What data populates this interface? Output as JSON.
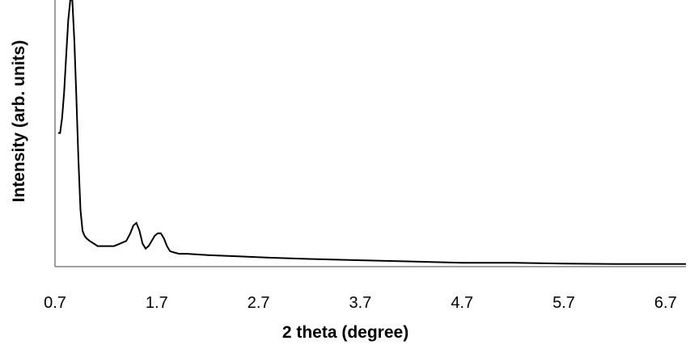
{
  "chart_data": {
    "type": "line",
    "xlabel": "2 theta (degree)",
    "ylabel": "Intensity (arb. units)",
    "xlim": [
      0.7,
      6.9
    ],
    "ylim": [
      0,
      100
    ],
    "x_ticks": [
      "0.7",
      "1.7",
      "2.7",
      "3.7",
      "4.7",
      "5.7",
      "6.7"
    ],
    "y_ticks_shown": false,
    "grid": false,
    "legend": "none",
    "series": [
      {
        "color": "#000000",
        "x": [
          0.73,
          0.75,
          0.77,
          0.79,
          0.81,
          0.83,
          0.85,
          0.87,
          0.89,
          0.91,
          0.93,
          0.95,
          0.97,
          0.99,
          1.01,
          1.04,
          1.08,
          1.12,
          1.17,
          1.22,
          1.28,
          1.34,
          1.4,
          1.44,
          1.47,
          1.5,
          1.53,
          1.56,
          1.59,
          1.62,
          1.65,
          1.68,
          1.71,
          1.74,
          1.77,
          1.8,
          1.83,
          1.87,
          1.92,
          2.0,
          2.2,
          2.5,
          2.8,
          3.2,
          3.7,
          4.2,
          4.7,
          5.2,
          5.7,
          6.2,
          6.7,
          6.9
        ],
        "y": [
          52,
          52,
          58,
          68,
          82,
          96,
          104,
          104,
          88,
          66,
          42,
          22,
          14,
          12,
          11,
          10,
          9,
          8,
          8,
          8,
          8,
          9,
          10,
          13,
          16,
          17,
          14,
          9,
          7,
          8,
          10,
          12,
          13,
          13,
          11,
          8,
          6,
          5.5,
          5,
          5,
          4.5,
          4,
          3.5,
          3,
          2.5,
          2,
          1.5,
          1.5,
          1.2,
          1,
          1,
          1
        ]
      }
    ]
  }
}
